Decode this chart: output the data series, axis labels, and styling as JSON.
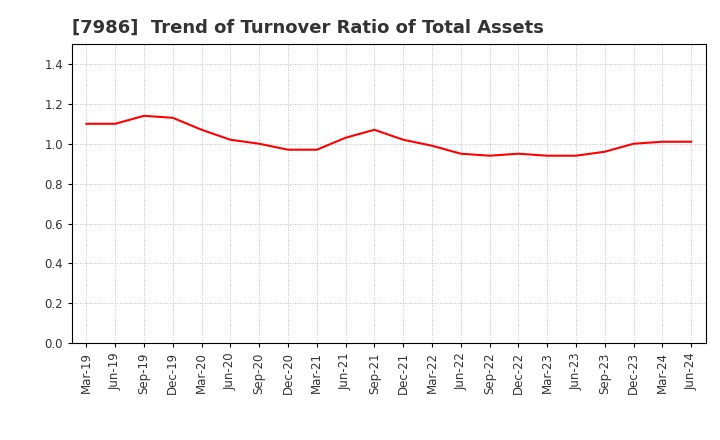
{
  "title": "[7986]  Trend of Turnover Ratio of Total Assets",
  "x_labels": [
    "Mar-19",
    "Jun-19",
    "Sep-19",
    "Dec-19",
    "Mar-20",
    "Jun-20",
    "Sep-20",
    "Dec-20",
    "Mar-21",
    "Jun-21",
    "Sep-21",
    "Dec-21",
    "Mar-22",
    "Jun-22",
    "Sep-22",
    "Dec-22",
    "Mar-23",
    "Jun-23",
    "Sep-23",
    "Dec-23",
    "Mar-24",
    "Jun-24"
  ],
  "y_values": [
    1.1,
    1.1,
    1.14,
    1.13,
    1.07,
    1.02,
    1.0,
    0.97,
    0.97,
    1.03,
    1.07,
    1.02,
    0.99,
    0.95,
    0.94,
    0.95,
    0.94,
    0.94,
    0.96,
    1.0,
    1.01,
    1.01
  ],
  "line_color": "#FF0000",
  "line_width": 1.5,
  "ylim": [
    0.0,
    1.5
  ],
  "yticks": [
    0.0,
    0.2,
    0.4,
    0.6,
    0.8,
    1.0,
    1.2,
    1.4
  ],
  "grid_color": "#aaaaaa",
  "bg_color": "#ffffff",
  "title_fontsize": 13,
  "tick_fontsize": 8.5,
  "title_color": "#333333"
}
